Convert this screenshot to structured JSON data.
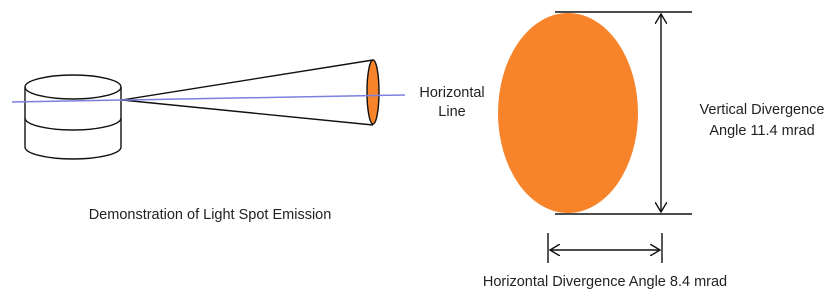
{
  "labels": {
    "horizontal_line": [
      "Horizontal",
      "Line"
    ],
    "vertical_divergence": [
      "Vertical Divergence",
      "Angle 11.4 mrad"
    ],
    "demonstration": "Demonstration of Light Spot Emission",
    "horizontal_divergence": "Horizontal Divergence Angle 8.4 mrad"
  }
}
